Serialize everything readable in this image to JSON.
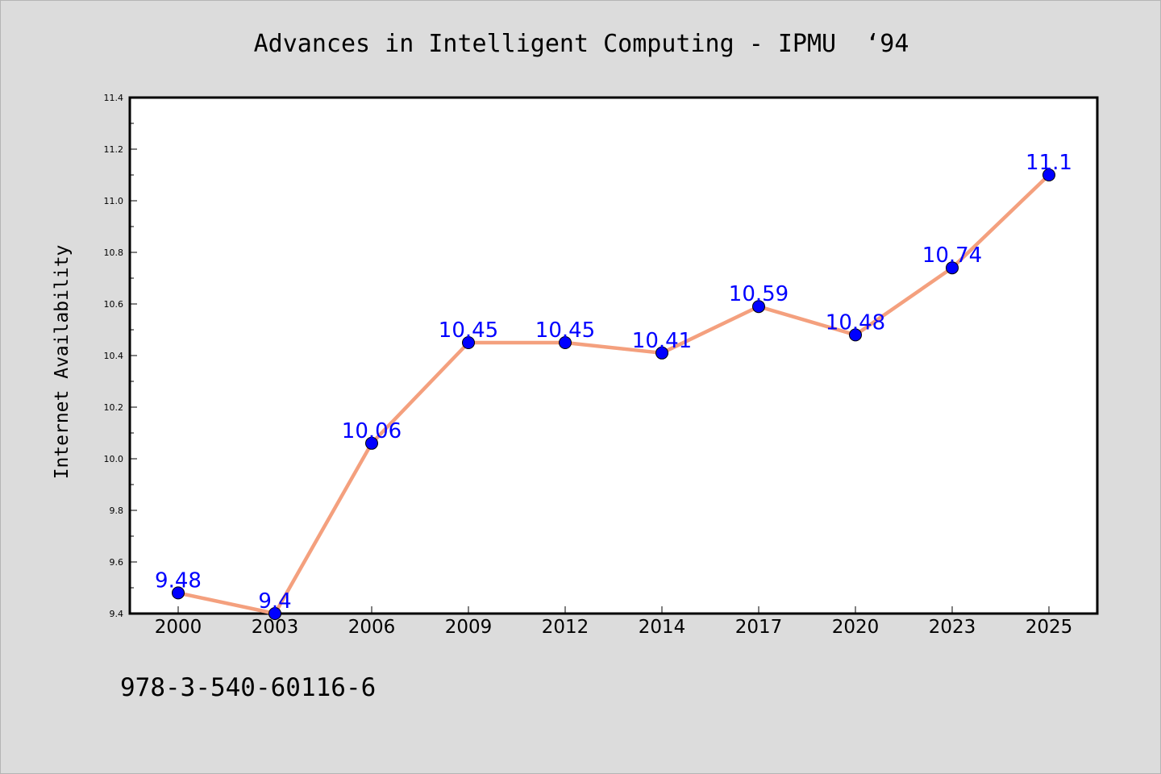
{
  "chart_data": {
    "type": "line",
    "title": "Advances in Intelligent Computing - IPMU  ‘94",
    "xlabel": "",
    "ylabel": "Internet Availability",
    "categories": [
      "2000",
      "2003",
      "2006",
      "2009",
      "2012",
      "2014",
      "2017",
      "2020",
      "2023",
      "2025"
    ],
    "series": [
      {
        "values": [
          9.48,
          9.4,
          10.06,
          10.45,
          10.45,
          10.41,
          10.59,
          10.48,
          10.74,
          11.1
        ],
        "labels": [
          "9.48",
          "9.4",
          "10.06",
          "10.45",
          "10.45",
          "10.41",
          "10.59",
          "10.48",
          "10.74",
          "11.1"
        ],
        "line_color": "#f4a07e",
        "marker_color": "#0000ff"
      }
    ],
    "ylim": [
      9.4,
      11.4
    ],
    "yticks": [
      "9.4",
      "9.6",
      "9.8",
      "10.0",
      "10.2",
      "10.4",
      "10.6",
      "10.8",
      "11.0",
      "11.2",
      "11.4"
    ],
    "grid": false,
    "data_label_color": "#0000ff"
  },
  "footer": {
    "isbn": "978-3-540-60116-6"
  }
}
